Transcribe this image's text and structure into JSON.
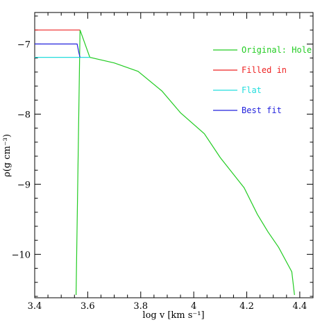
{
  "chart_data": {
    "type": "line",
    "xlabel": "log v [km s⁻¹]",
    "ylabel": "ρ(g cm⁻³)",
    "xlim": [
      3.4,
      4.45
    ],
    "ylim": [
      -10.62,
      -6.55
    ],
    "xticks": [
      "3.4",
      "3.6",
      "3.8",
      "4",
      "4.2",
      "4.4"
    ],
    "xtick_values": [
      3.4,
      3.6,
      3.8,
      4.0,
      4.2,
      4.4
    ],
    "yticks": [
      "−10",
      "−9",
      "−8",
      "−7"
    ],
    "ytick_values": [
      -10,
      -9,
      -8,
      -7
    ],
    "legend_position": "top-right",
    "series": [
      {
        "name": "Original: Hole",
        "color": "#22cc22",
        "x": [
          3.556,
          3.571,
          3.608,
          3.7,
          3.79,
          3.88,
          3.95,
          4.04,
          4.1,
          4.19,
          4.24,
          4.28,
          4.32,
          4.37,
          4.38
        ],
        "y": [
          -10.58,
          -6.8,
          -7.19,
          -7.27,
          -7.39,
          -7.67,
          -7.98,
          -8.28,
          -8.62,
          -9.05,
          -9.43,
          -9.68,
          -9.9,
          -10.25,
          -10.58
        ]
      },
      {
        "name": "Filled in",
        "color": "#ee2222",
        "x": [
          3.4,
          3.571
        ],
        "y": [
          -6.8,
          -6.8
        ]
      },
      {
        "name": "Flat",
        "color": "#22dddd",
        "x": [
          3.4,
          3.608
        ],
        "y": [
          -7.19,
          -7.19
        ]
      },
      {
        "name": "Best fit",
        "color": "#2222dd",
        "x": [
          3.4,
          3.56,
          3.567,
          3.571
        ],
        "y": [
          -7.0,
          -7.0,
          -7.13,
          -7.19
        ]
      }
    ]
  }
}
